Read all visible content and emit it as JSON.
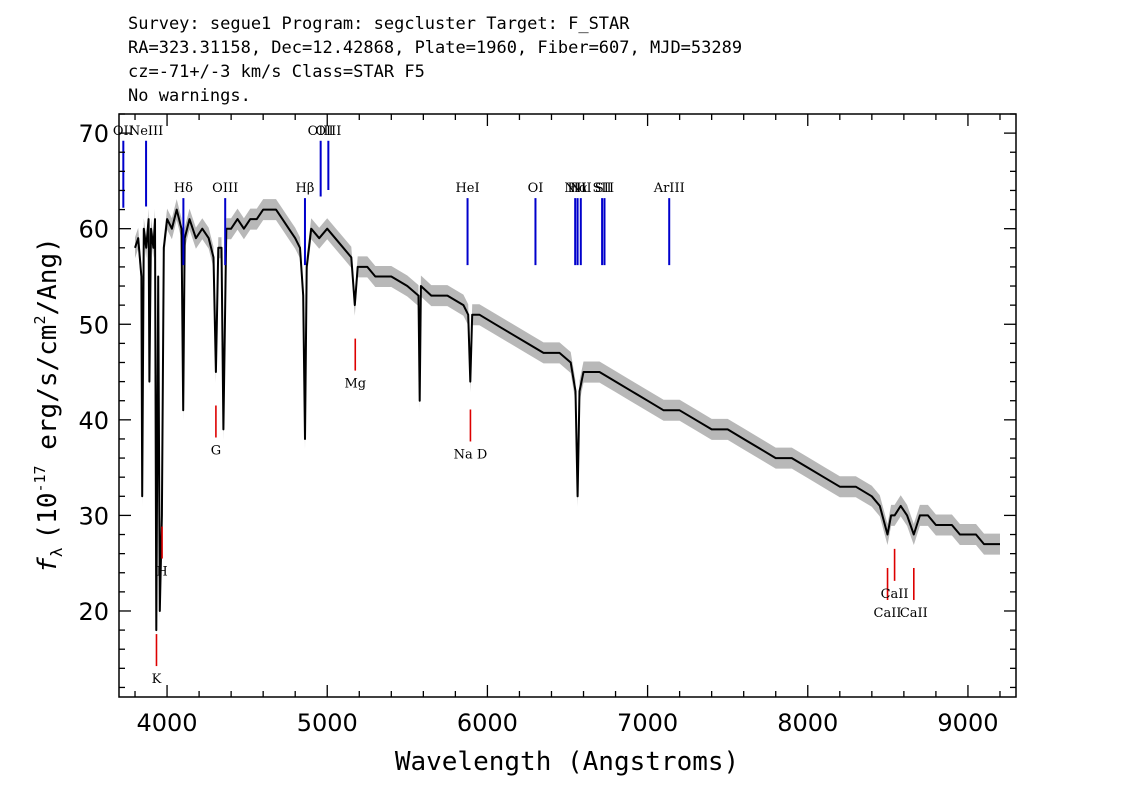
{
  "header": {
    "line1": "Survey: segue1 Program: segcluster Target: F_STAR",
    "line2": "RA=323.31158, Dec=12.42868, Plate=1960, Fiber=607, MJD=53289",
    "line3": "cz=-71+/-3 km/s Class=STAR F5",
    "line4": "No warnings."
  },
  "colors": {
    "flux": "#000000",
    "error_band": "#b8b8b8",
    "emission_marker": "#0000cc",
    "absorption_marker": "#dd0000"
  },
  "chart_data": {
    "type": "line",
    "xlabel": "Wavelength (Angstroms)",
    "ylabel": "f_λ (10^-17 erg/s/cm^2/Ang)",
    "ylabel_parts": {
      "symbol": "f",
      "sub": "λ",
      "pre": "(10",
      "exp": "-17",
      "mid": " erg/s/cm",
      "exp2": "2",
      "post": "/Ang)"
    },
    "xlim": [
      3700,
      9300
    ],
    "ylim": [
      11,
      72
    ],
    "xticks": [
      4000,
      5000,
      6000,
      7000,
      8000,
      9000
    ],
    "yticks": [
      20,
      30,
      40,
      50,
      60,
      70
    ],
    "series": [
      {
        "x": [
          3800,
          3820,
          3840,
          3845,
          3855,
          3870,
          3885,
          3890,
          3900,
          3915,
          3925,
          3933,
          3945,
          3955,
          3968,
          3980,
          4000,
          4030,
          4060,
          4090,
          4101,
          4110,
          4140,
          4180,
          4220,
          4260,
          4290,
          4305,
          4320,
          4340,
          4352,
          4370,
          4400,
          4440,
          4480,
          4520,
          4560,
          4600,
          4640,
          4680,
          4720,
          4760,
          4800,
          4830,
          4850,
          4861,
          4872,
          4900,
          4950,
          5000,
          5050,
          5100,
          5150,
          5172,
          5190,
          5250,
          5300,
          5400,
          5500,
          5570,
          5577,
          5585,
          5650,
          5750,
          5850,
          5880,
          5893,
          5905,
          5950,
          6050,
          6150,
          6250,
          6350,
          6450,
          6520,
          6550,
          6563,
          6575,
          6600,
          6700,
          6800,
          6900,
          7000,
          7100,
          7200,
          7300,
          7400,
          7500,
          7600,
          7700,
          7800,
          7900,
          8000,
          8100,
          8200,
          8300,
          8400,
          8450,
          8498,
          8520,
          8542,
          8580,
          8620,
          8662,
          8700,
          8750,
          8800,
          8850,
          8900,
          8950,
          9000,
          9050,
          9100,
          9150,
          9200
        ],
        "y": [
          58,
          59,
          55,
          32,
          60,
          58,
          61,
          44,
          60,
          58,
          61,
          18,
          55,
          20,
          30,
          58,
          61,
          60,
          62,
          60,
          41,
          59,
          61,
          59,
          60,
          59,
          57,
          45,
          58,
          58,
          39,
          60,
          60,
          61,
          60,
          61,
          61,
          62,
          62,
          62,
          61,
          60,
          59,
          58,
          53,
          38,
          56,
          60,
          59,
          60,
          59,
          58,
          57,
          52,
          56,
          56,
          55,
          55,
          54,
          53,
          42,
          54,
          53,
          53,
          52,
          51,
          44,
          51,
          51,
          50,
          49,
          48,
          47,
          47,
          46,
          43,
          32,
          43,
          45,
          45,
          44,
          43,
          42,
          41,
          41,
          40,
          39,
          39,
          38,
          37,
          36,
          36,
          35,
          34,
          33,
          33,
          32,
          31,
          28,
          30,
          30,
          31,
          30,
          28,
          30,
          30,
          29,
          29,
          29,
          28,
          28,
          28,
          27,
          27,
          27
        ]
      }
    ],
    "emission_lines": [
      {
        "label": "OII",
        "x": 3727
      },
      {
        "label": "NeIII",
        "x": 3869
      },
      {
        "label": "Hδ",
        "x": 4102
      },
      {
        "label": "OIII",
        "x": 4363
      },
      {
        "label": "Hβ",
        "x": 4861
      },
      {
        "label": "OIII",
        "x": 4959
      },
      {
        "label": "OIII",
        "x": 5007
      },
      {
        "label": "HeI",
        "x": 5876
      },
      {
        "label": "OI",
        "x": 6300
      },
      {
        "label": "NII",
        "x": 6548
      },
      {
        "label": "Hα",
        "x": 6563
      },
      {
        "label": "NII",
        "x": 6583
      },
      {
        "label": "SII",
        "x": 6716
      },
      {
        "label": "SII",
        "x": 6731
      },
      {
        "label": "ArIII",
        "x": 7135
      }
    ],
    "absorption_lines": [
      {
        "label": "K",
        "x": 3934
      },
      {
        "label": "H",
        "x": 3969
      },
      {
        "label": "G",
        "x": 4305
      },
      {
        "label": "Mg",
        "x": 5175
      },
      {
        "label": "Na D",
        "x": 5894
      },
      {
        "label": "CaII",
        "x": 8498
      },
      {
        "label": "CaII",
        "x": 8542
      },
      {
        "label": "CaII",
        "x": 8662
      }
    ]
  }
}
